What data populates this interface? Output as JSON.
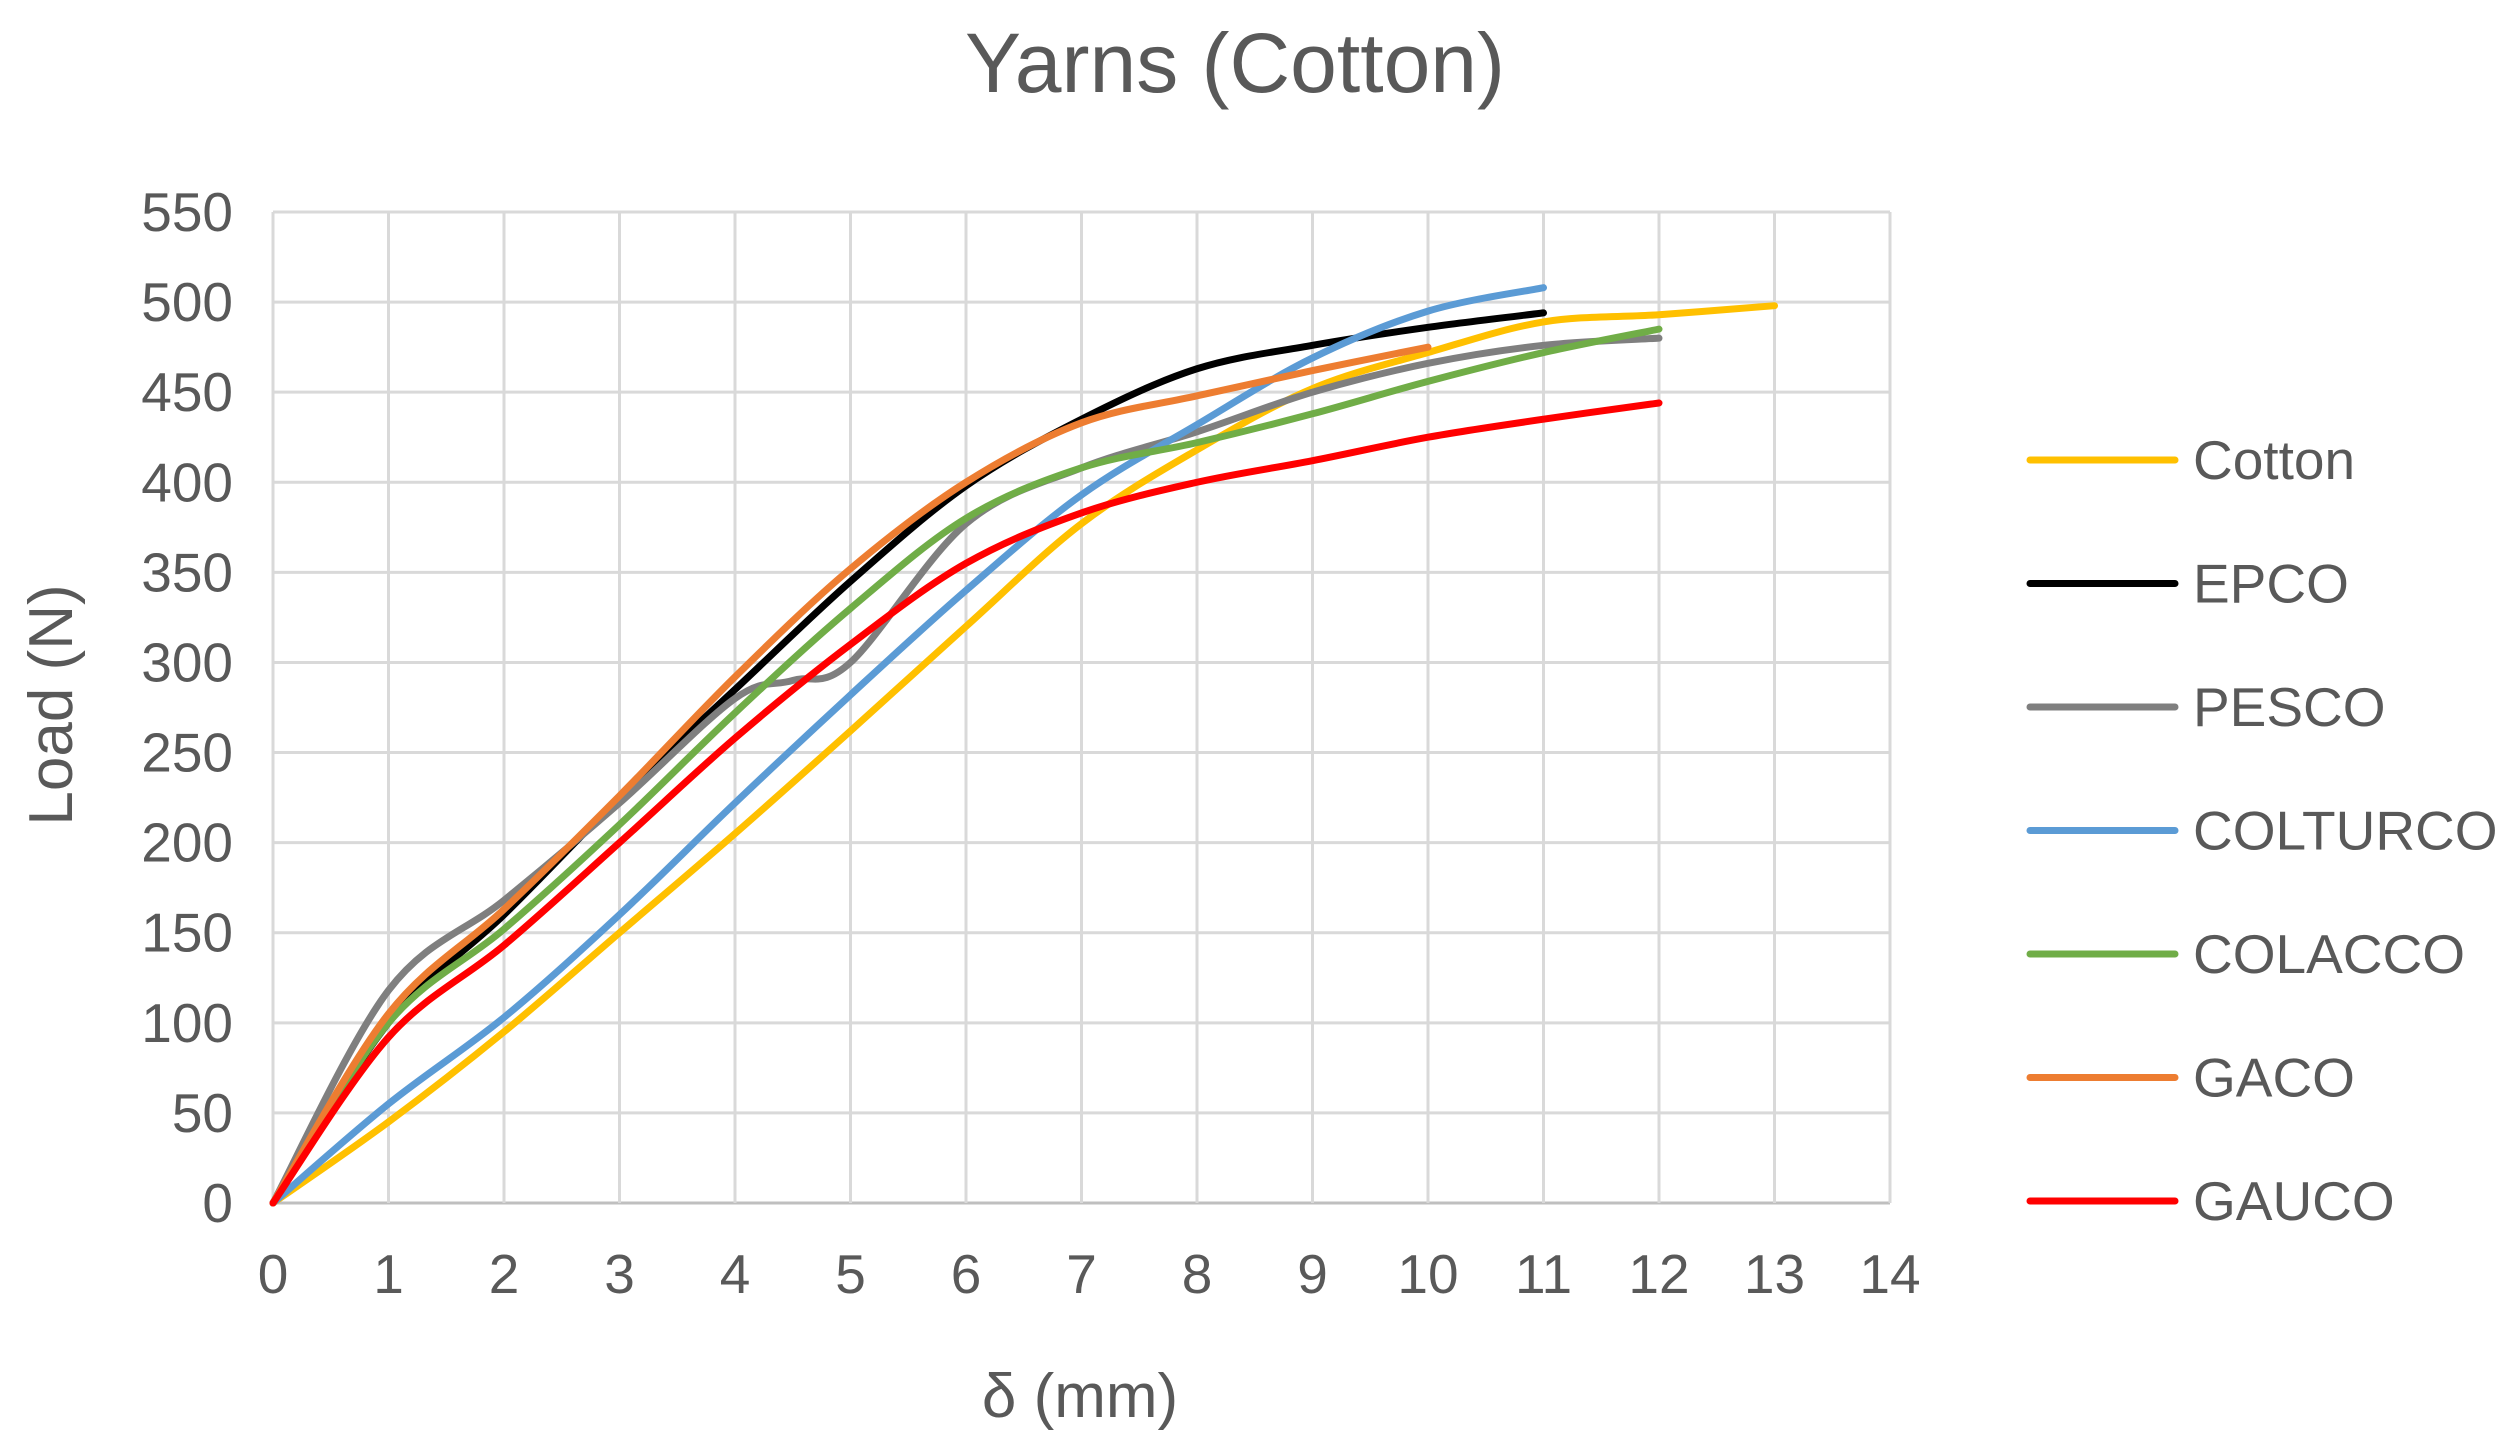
{
  "chart_data": {
    "type": "line",
    "title": "Yarns (Cotton)",
    "xlabel": "δ (mm)",
    "ylabel": "Load (N)",
    "xlim": [
      0,
      14
    ],
    "ylim": [
      0,
      550
    ],
    "x_ticks": [
      0,
      1,
      2,
      3,
      4,
      5,
      6,
      7,
      8,
      9,
      10,
      11,
      12,
      13,
      14
    ],
    "y_ticks": [
      0,
      50,
      100,
      150,
      200,
      250,
      300,
      350,
      400,
      450,
      500,
      550
    ],
    "grid": true,
    "legend_position": "right",
    "series": [
      {
        "name": "Cotton",
        "color": "#FFC000",
        "x": [
          0,
          1,
          2,
          3,
          4,
          5,
          6,
          7,
          8,
          9,
          10,
          11,
          12,
          13
        ],
        "y": [
          0,
          45,
          95,
          150,
          205,
          262,
          320,
          377,
          418,
          452,
          472,
          489,
          493,
          498
        ]
      },
      {
        "name": "EPCO",
        "color": "#000000",
        "x": [
          0,
          1,
          2,
          3,
          4,
          5,
          6,
          7,
          8,
          9,
          10,
          11
        ],
        "y": [
          0,
          100,
          160,
          225,
          285,
          345,
          398,
          435,
          463,
          476,
          486,
          494
        ]
      },
      {
        "name": "PESCO",
        "color": "#7F7F7F",
        "x": [
          0,
          1,
          2,
          3,
          4,
          4.5,
          5,
          6,
          7,
          8,
          9,
          10,
          11,
          12
        ],
        "y": [
          0,
          118,
          168,
          222,
          280,
          290,
          300,
          377,
          408,
          428,
          450,
          466,
          476,
          480
        ]
      },
      {
        "name": "COLTURCO",
        "color": "#5B9BD5",
        "x": [
          0,
          1,
          2,
          3,
          4,
          5,
          6,
          7,
          8,
          9,
          10,
          11
        ],
        "y": [
          0,
          55,
          103,
          160,
          222,
          282,
          340,
          393,
          432,
          469,
          495,
          508
        ]
      },
      {
        "name": "COLACCO",
        "color": "#70AD47",
        "x": [
          0,
          1,
          2,
          3,
          4,
          5,
          6,
          7,
          8,
          9,
          10,
          11,
          12
        ],
        "y": [
          0,
          100,
          152,
          210,
          272,
          330,
          380,
          408,
          422,
          438,
          456,
          472,
          485
        ]
      },
      {
        "name": "GACO",
        "color": "#ED7D31",
        "x": [
          0,
          1,
          2,
          3,
          4,
          5,
          6,
          7,
          8,
          9,
          10
        ],
        "y": [
          0,
          105,
          163,
          226,
          292,
          352,
          400,
          433,
          448,
          462,
          475
        ]
      },
      {
        "name": "GAUCO",
        "color": "#FF0000",
        "x": [
          0,
          1,
          2,
          3,
          4,
          5,
          6,
          7,
          8,
          9,
          10,
          11,
          12
        ],
        "y": [
          0,
          92,
          143,
          200,
          258,
          310,
          355,
          383,
          400,
          412,
          425,
          435,
          444
        ]
      }
    ]
  }
}
